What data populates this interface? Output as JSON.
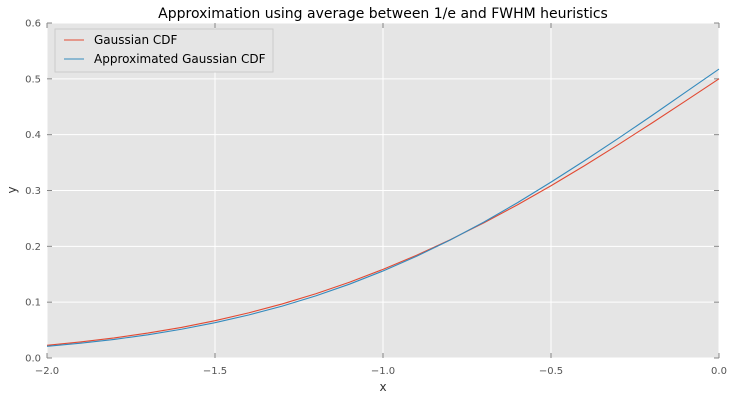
{
  "chart_data": {
    "type": "line",
    "title": "Approximation using average between 1/e and FWHM heuristics",
    "xlabel": "x",
    "ylabel": "y",
    "xlim": [
      -2.0,
      0.0
    ],
    "ylim": [
      0.0,
      0.6
    ],
    "xticks": [
      -2.0,
      -1.5,
      -1.0,
      -0.5,
      0.0
    ],
    "xtick_labels": [
      "−2.0",
      "−1.5",
      "−1.0",
      "−0.5",
      "0.0"
    ],
    "yticks": [
      0.0,
      0.1,
      0.2,
      0.3,
      0.4,
      0.5,
      0.6
    ],
    "ytick_labels": [
      "0.0",
      "0.1",
      "0.2",
      "0.3",
      "0.4",
      "0.5",
      "0.6"
    ],
    "grid": true,
    "background": "#e5e5e5",
    "legend_position": "top-left",
    "x": [
      -2.0,
      -1.9,
      -1.8,
      -1.7,
      -1.6,
      -1.5,
      -1.4,
      -1.3,
      -1.2,
      -1.1,
      -1.0,
      -0.9,
      -0.8,
      -0.7,
      -0.6,
      -0.5,
      -0.4,
      -0.3,
      -0.2,
      -0.1,
      0.0
    ],
    "series": [
      {
        "name": "Gaussian CDF",
        "color": "#e24a33",
        "values": [
          0.0228,
          0.0287,
          0.0359,
          0.0446,
          0.0548,
          0.0668,
          0.0808,
          0.0968,
          0.1151,
          0.1357,
          0.1587,
          0.1841,
          0.2119,
          0.242,
          0.2743,
          0.3085,
          0.3446,
          0.3821,
          0.4207,
          0.4602,
          0.5
        ]
      },
      {
        "name": "Approximated Gaussian CDF",
        "color": "#348abd",
        "values": [
          0.021,
          0.0265,
          0.0333,
          0.0416,
          0.0515,
          0.0632,
          0.077,
          0.0929,
          0.1113,
          0.1322,
          0.1558,
          0.1822,
          0.2114,
          0.2434,
          0.2781,
          0.315,
          0.3535,
          0.3932,
          0.4341,
          0.4758,
          0.5175
        ]
      }
    ]
  }
}
